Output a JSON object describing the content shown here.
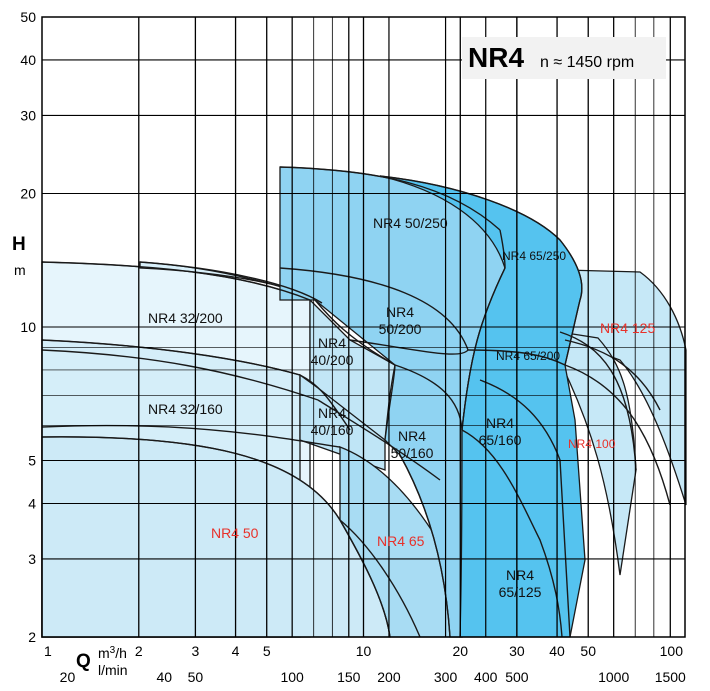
{
  "chart_data": {
    "type": "area",
    "title": "NR4",
    "subtitle": "n ≈ 1450 rpm",
    "ylabel": "H",
    "yunit": "m",
    "xlabel": "Q",
    "xunit_primary": "m3/h",
    "xunit_secondary": "l/min",
    "xscale": "log",
    "yscale": "log",
    "xlim": [
      1,
      100
    ],
    "ylim": [
      2,
      50
    ],
    "grid": true,
    "y_ticks": [
      "2",
      "3",
      "4",
      "5",
      "10",
      "20",
      "30",
      "40",
      "50"
    ],
    "x_ticks_m3h": [
      "1",
      "2",
      "3",
      "4",
      "5",
      "10",
      "20",
      "30",
      "40",
      "50",
      "100"
    ],
    "x_ticks_lmin": [
      "20",
      "40",
      "50",
      "100",
      "150",
      "200",
      "300",
      "400",
      "500",
      "1000",
      "1500"
    ],
    "regions": [
      {
        "name": "NR4 32/200",
        "label": "NR4 32/200",
        "label_color": "#111111",
        "fill": "#e6f5fc",
        "H_max": 13.5,
        "Q_max": 6.0
      },
      {
        "name": "NR4 32/160",
        "label": "NR4 32/160",
        "label_color": "#111111",
        "fill": "#d5eef9",
        "H_max": 9.0,
        "Q_max": 9.0
      },
      {
        "name": "NR4 50",
        "label": "NR4 50",
        "label_color": "#e8312a",
        "fill": "#cdeaf7",
        "H_max": 6.1,
        "Q_max": 12.5
      },
      {
        "name": "NR4 40/200",
        "label": "NR4 40/200",
        "label_color": "#111111",
        "fill": "#c2e6f6",
        "H_max": 13.8,
        "Q_max": 12.0
      },
      {
        "name": "NR4 40/160",
        "label": "NR4 40/160",
        "label_color": "#111111",
        "fill": "#bfe5f6",
        "H_max": 8.0,
        "Q_max": 11.0
      },
      {
        "name": "NR4 65",
        "label": "NR4 65",
        "label_color": "#e8312a",
        "fill": "#a8dcf3",
        "H_max": 7.5,
        "Q_max": 20.0
      },
      {
        "name": "NR4 50/250",
        "label": "NR4 50/250",
        "label_color": "#111111",
        "fill": "#8fd3f2",
        "H_max": 22.5,
        "Q_max": 24.0
      },
      {
        "name": "NR4 50/200",
        "label": "NR4 50/200",
        "label_color": "#111111",
        "fill": "#8fd3f2",
        "H_max": 14.0,
        "Q_max": 25.0
      },
      {
        "name": "NR4 50/160",
        "label": "NR4 50/160",
        "label_color": "#111111",
        "fill": "#8fd3f2",
        "H_max": 8.0,
        "Q_max": 20.0
      },
      {
        "name": "NR4 65/250",
        "label": "NR4 65/250",
        "label_color": "#111111",
        "fill": "#55c3ef",
        "H_max": 22.0,
        "Q_max": 43.0
      },
      {
        "name": "NR4 65/200",
        "label": "NR4 65/200",
        "label_color": "#111111",
        "fill": "#55c3ef",
        "H_max": 12.0,
        "Q_max": 40.0
      },
      {
        "name": "NR4 65/160",
        "label": "NR4 65/160",
        "label_color": "#111111",
        "fill": "#55c3ef",
        "H_max": 8.0,
        "Q_max": 40.0
      },
      {
        "name": "NR4 65/125",
        "label": "NR4 65/125",
        "label_color": "#111111",
        "fill": "#55c3ef",
        "H_max": 6.0,
        "Q_max": 40.0
      },
      {
        "name": "NR4 125",
        "label": "NR4 125",
        "label_color": "#e8312a",
        "fill": "#c6e8f7",
        "H_max": 13.0,
        "Q_max": 100.0
      },
      {
        "name": "NR4 100",
        "label": "NR4 100",
        "label_color": "#e8312a",
        "fill": "#c6e8f7",
        "H_max": 8.5,
        "Q_max": 80.0
      }
    ]
  }
}
